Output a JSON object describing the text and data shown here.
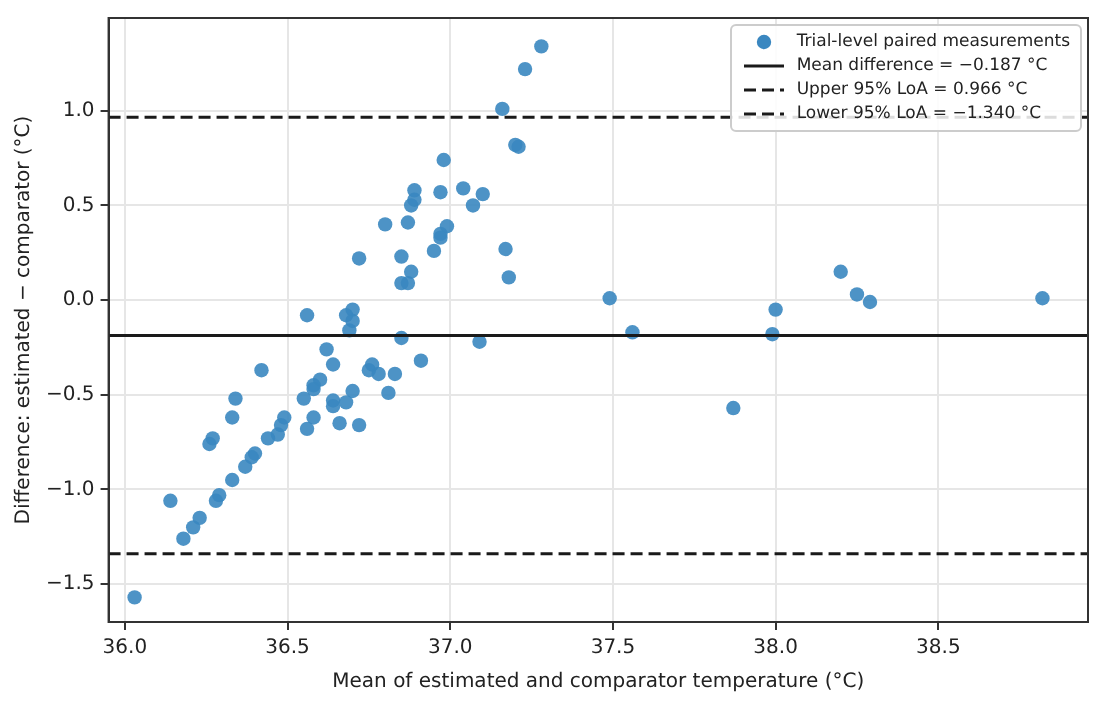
{
  "chart_data": {
    "type": "scatter",
    "xlabel": "Mean of estimated and comparator temperature (°C)",
    "ylabel": "Difference: estimated − comparator (°C)",
    "xlim": [
      35.95,
      38.96
    ],
    "ylim": [
      -1.7,
      1.49
    ],
    "xticks": [
      {
        "value": 36,
        "label": "36.0"
      },
      {
        "value": 36.5,
        "label": "36.5"
      },
      {
        "value": 37,
        "label": "37.0"
      },
      {
        "value": 37.5,
        "label": "37.5"
      },
      {
        "value": 38,
        "label": "38.0"
      },
      {
        "value": 38.5,
        "label": "38.5"
      }
    ],
    "yticks": [
      {
        "value": -1.5,
        "label": "−1.5"
      },
      {
        "value": -1,
        "label": "−1.0"
      },
      {
        "value": -0.5,
        "label": "−0.5"
      },
      {
        "value": 0,
        "label": "0.0"
      },
      {
        "value": 0.5,
        "label": "0.5"
      },
      {
        "value": 1,
        "label": "1.0"
      }
    ],
    "grid": true,
    "legend": "top right",
    "marker": "circle",
    "series": [
      {
        "name": "Trial-level paired measurements",
        "color": "#3a87c0",
        "x": [
          37.28,
          37.23,
          37.16,
          37.21,
          37.2,
          36.98,
          36.89,
          36.97,
          37.04,
          37.1,
          37.07,
          36.88,
          36.89,
          36.8,
          36.87,
          36.99,
          36.97,
          36.97,
          36.72,
          36.85,
          36.95,
          36.88,
          36.85,
          36.87,
          36.56,
          36.68,
          36.7,
          36.7,
          36.69,
          37.17,
          37.18,
          37.49,
          37.56,
          38.2,
          38.25,
          38.29,
          38,
          37.99,
          38.82,
          37.09,
          37.87,
          36.62,
          36.85,
          36.64,
          36.42,
          36.91,
          36.75,
          36.76,
          36.78,
          36.83,
          36.6,
          36.58,
          36.58,
          36.7,
          36.81,
          36.34,
          36.55,
          36.64,
          36.64,
          36.68,
          36.33,
          36.58,
          36.49,
          36.66,
          36.72,
          36.48,
          36.56,
          36.47,
          36.44,
          36.27,
          36.26,
          36.4,
          36.39,
          36.37,
          36.33,
          36.29,
          36.28,
          36.14,
          36.23,
          36.21,
          36.18,
          36.03
        ],
        "values": [
          1.34,
          1.22,
          1.01,
          0.81,
          0.82,
          0.74,
          0.58,
          0.57,
          0.59,
          0.56,
          0.5,
          0.5,
          0.53,
          0.4,
          0.41,
          0.39,
          0.35,
          0.33,
          0.22,
          0.23,
          0.26,
          0.15,
          0.09,
          0.09,
          -0.08,
          -0.08,
          -0.05,
          -0.11,
          -0.16,
          0.27,
          0.12,
          0.01,
          -0.17,
          0.15,
          0.03,
          -0.01,
          -0.05,
          -0.18,
          0.01,
          -0.22,
          -0.57,
          -0.26,
          -0.2,
          -0.34,
          -0.37,
          -0.32,
          -0.37,
          -0.34,
          -0.39,
          -0.39,
          -0.42,
          -0.45,
          -0.47,
          -0.48,
          -0.49,
          -0.52,
          -0.52,
          -0.53,
          -0.56,
          -0.54,
          -0.62,
          -0.62,
          -0.62,
          -0.65,
          -0.66,
          -0.66,
          -0.68,
          -0.71,
          -0.73,
          -0.73,
          -0.76,
          -0.81,
          -0.83,
          -0.88,
          -0.95,
          -1.03,
          -1.06,
          -1.06,
          -1.15,
          -1.2,
          -1.26,
          -1.57
        ]
      }
    ],
    "ref_lines": [
      {
        "axis": "y",
        "value": -0.187,
        "label": "Mean difference = −0.187 °C",
        "color": "#1a1a1a",
        "line_style": "solid"
      },
      {
        "axis": "y",
        "value": 0.966,
        "label": "Upper 95% LoA = 0.966 °C",
        "color": "#1a1a1a",
        "line_style": "dashed"
      },
      {
        "axis": "y",
        "value": -1.34,
        "label": "Lower 95% LoA = −1.340 °C",
        "color": "#1a1a1a",
        "line_style": "dashed"
      }
    ]
  }
}
